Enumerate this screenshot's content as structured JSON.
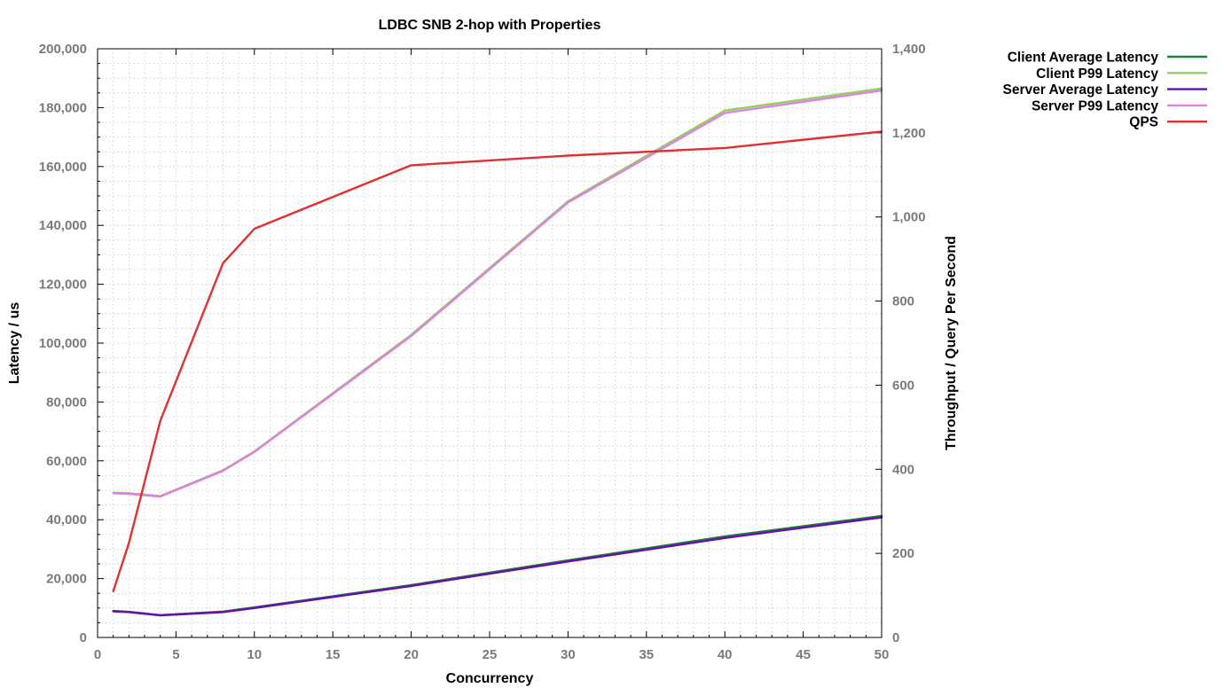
{
  "chart_data": {
    "type": "line",
    "title": "LDBC SNB 2-hop with Properties",
    "xlabel": "Concurrency",
    "ylabel": "Latency / us",
    "y2label": "Throughput / Query Per Second",
    "xlim": [
      0,
      50
    ],
    "ylim": [
      0,
      200000
    ],
    "y2lim": [
      0,
      1400
    ],
    "xticks": [
      0,
      5,
      10,
      15,
      20,
      25,
      30,
      35,
      40,
      45,
      50
    ],
    "xtick_labels": [
      "0",
      "5",
      "10",
      "15",
      "20",
      "25",
      "30",
      "35",
      "40",
      "45",
      "50"
    ],
    "yticks": [
      0,
      20000,
      40000,
      60000,
      80000,
      100000,
      120000,
      140000,
      160000,
      180000,
      200000
    ],
    "ytick_labels": [
      "0",
      "20,000",
      "40,000",
      "60,000",
      "80,000",
      "100,000",
      "120,000",
      "140,000",
      "160,000",
      "180,000",
      "200,000"
    ],
    "y2ticks": [
      0,
      200,
      400,
      600,
      800,
      1000,
      1200,
      1400
    ],
    "y2tick_labels": [
      "0",
      "200",
      "400",
      "600",
      "800",
      "1,000",
      "1,200",
      "1,400"
    ],
    "grid": true,
    "legend_position": "top-right-outside",
    "x": [
      1,
      2,
      4,
      8,
      10,
      20,
      30,
      40,
      50
    ],
    "series": [
      {
        "name": "Client Average Latency",
        "axis": "left",
        "color": "#1a7f37",
        "values": [
          9000,
          8700,
          7600,
          8800,
          10200,
          17800,
          26200,
          34300,
          41300
        ]
      },
      {
        "name": "Client P99 Latency",
        "axis": "left",
        "color": "#90d060",
        "values": [
          49200,
          49000,
          48000,
          56800,
          63200,
          102800,
          148200,
          179000,
          186500
        ]
      },
      {
        "name": "Server Average Latency",
        "axis": "left",
        "color": "#6a0dad",
        "values": [
          8900,
          8600,
          7500,
          8600,
          10000,
          17500,
          25800,
          33800,
          40800
        ]
      },
      {
        "name": "Server P99 Latency",
        "axis": "left",
        "color": "#e080e0",
        "values": [
          49000,
          48800,
          47900,
          56600,
          63000,
          102400,
          147800,
          178200,
          185800
        ]
      },
      {
        "name": "QPS",
        "axis": "right",
        "color": "#e03030",
        "values": [
          110,
          225,
          515,
          890,
          972,
          1123,
          1146,
          1164,
          1203
        ]
      }
    ]
  }
}
